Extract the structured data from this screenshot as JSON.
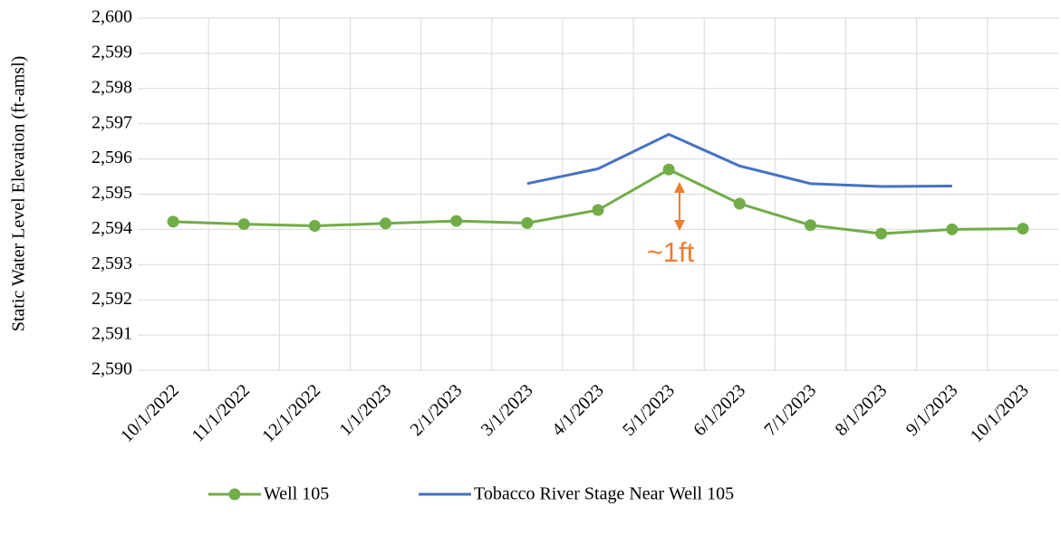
{
  "chart_data": {
    "type": "line",
    "y_label": "Static Water Level  Elevation (ft-amsl)",
    "annotation": "~1ft",
    "categories": [
      "10/1/2022",
      "11/1/2022",
      "12/1/2022",
      "1/1/2023",
      "2/1/2023",
      "3/1/2023",
      "4/1/2023",
      "5/1/2023",
      "6/1/2023",
      "7/1/2023",
      "8/1/2023",
      "9/1/2023",
      "10/1/2023"
    ],
    "series": [
      {
        "name": "Well 105",
        "color": "#70ad47",
        "markers": true,
        "values": [
          2594.22,
          2594.15,
          2594.1,
          2594.17,
          2594.24,
          2594.18,
          2594.55,
          2595.7,
          2594.73,
          2594.12,
          2593.88,
          2594.0,
          2594.02
        ]
      },
      {
        "name": "Tobacco River Stage Near Well 105",
        "color": "#4472c4",
        "markers": false,
        "values": [
          null,
          null,
          null,
          null,
          null,
          2595.3,
          2595.72,
          2596.7,
          2595.8,
          2595.3,
          2595.22,
          2595.23,
          null
        ]
      }
    ],
    "ylim": [
      2590,
      2600
    ],
    "yticks": [
      {
        "value": 2590,
        "label": "2,590"
      },
      {
        "value": 2591,
        "label": "2,591"
      },
      {
        "value": 2592,
        "label": "2,592"
      },
      {
        "value": 2593,
        "label": "2,593"
      },
      {
        "value": 2594,
        "label": "2,594"
      },
      {
        "value": 2595,
        "label": "2,595"
      },
      {
        "value": 2596,
        "label": "2,596"
      },
      {
        "value": 2597,
        "label": "2,597"
      },
      {
        "value": 2598,
        "label": "2,598"
      },
      {
        "value": 2599,
        "label": "2,599"
      },
      {
        "value": 2600,
        "label": "2,600"
      }
    ],
    "grid": true,
    "legend": "bottom"
  }
}
